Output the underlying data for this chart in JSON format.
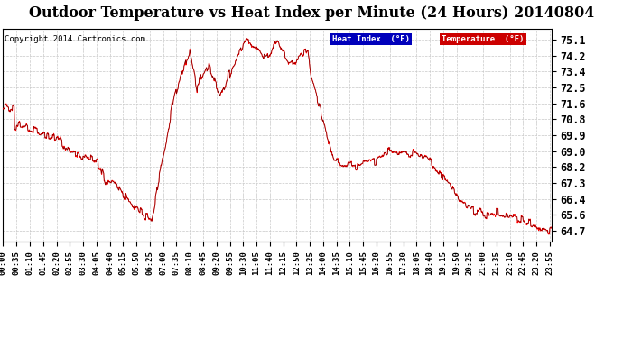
{
  "title": "Outdoor Temperature vs Heat Index per Minute (24 Hours) 20140804",
  "copyright": "Copyright 2014 Cartronics.com",
  "background_color": "#ffffff",
  "plot_bg_color": "#ffffff",
  "grid_color": "#c8c8c8",
  "line_color": "#ff0000",
  "legend_heat_bg": "#0000bb",
  "legend_temp_bg": "#cc0000",
  "legend_heat_label": "Heat Index  (°F)",
  "legend_temp_label": "Temperature  (°F)",
  "yticks": [
    64.7,
    65.6,
    66.4,
    67.3,
    68.2,
    69.0,
    69.9,
    70.8,
    71.6,
    72.5,
    73.4,
    74.2,
    75.1
  ],
  "ylim": [
    64.1,
    75.7
  ],
  "title_fontsize": 11.5,
  "copyright_fontsize": 6.5,
  "tick_fontsize": 6.5,
  "ytick_fontsize": 8.5
}
